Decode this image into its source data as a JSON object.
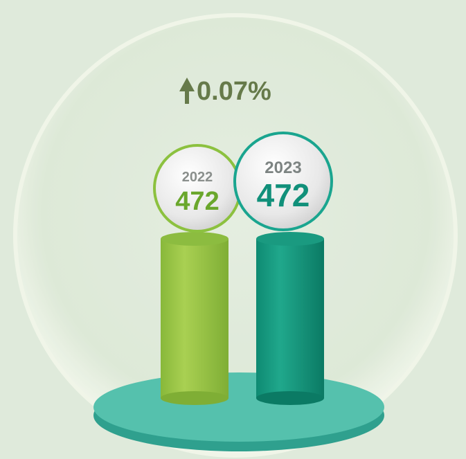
{
  "change": {
    "text": "0.07%"
  },
  "items": [
    {
      "year": "2022",
      "value": "472"
    },
    {
      "year": "2023",
      "value": "472"
    }
  ]
}
